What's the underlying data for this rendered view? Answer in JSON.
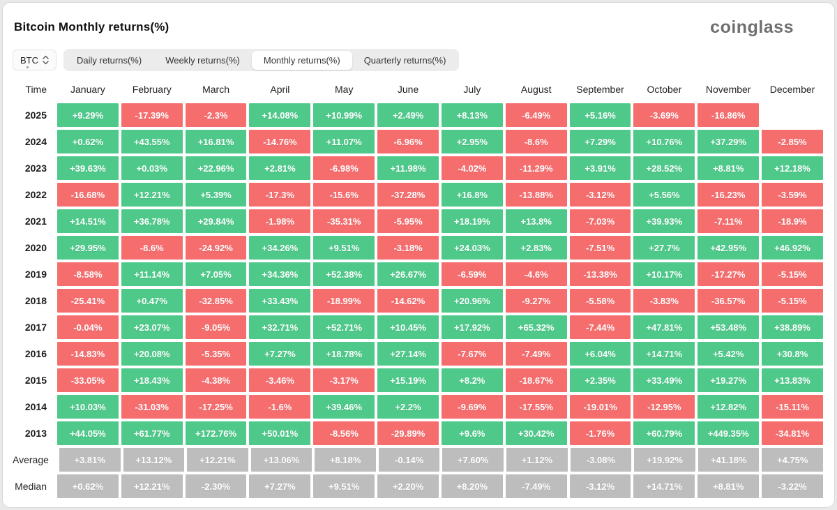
{
  "header": {
    "title": "Bitcoin Monthly returns(%)",
    "logo": "coinglass"
  },
  "controls": {
    "symbol": "BTC",
    "tabs": [
      {
        "label": "Daily returns(%)",
        "active": false
      },
      {
        "label": "Weekly returns(%)",
        "active": false
      },
      {
        "label": "Monthly returns(%)",
        "active": true
      },
      {
        "label": "Quarterly returns(%)",
        "active": false
      }
    ]
  },
  "chart_data": {
    "type": "heatmap",
    "title": "Bitcoin Monthly returns(%)",
    "legend_position": "none",
    "colors": {
      "positive": "#4ec98a",
      "negative": "#f66d6e",
      "summary": "#bdbdbd"
    },
    "columns": [
      "Time",
      "January",
      "February",
      "March",
      "April",
      "May",
      "June",
      "July",
      "August",
      "September",
      "October",
      "November",
      "December"
    ],
    "rows": [
      {
        "label": "2025",
        "summary": false,
        "values": [
          "+9.29%",
          "-17.39%",
          "-2.3%",
          "+14.08%",
          "+10.99%",
          "+2.49%",
          "+8.13%",
          "-6.49%",
          "+5.16%",
          "-3.69%",
          "-16.86%",
          ""
        ]
      },
      {
        "label": "2024",
        "summary": false,
        "values": [
          "+0.62%",
          "+43.55%",
          "+16.81%",
          "-14.76%",
          "+11.07%",
          "-6.96%",
          "+2.95%",
          "-8.6%",
          "+7.29%",
          "+10.76%",
          "+37.29%",
          "-2.85%"
        ]
      },
      {
        "label": "2023",
        "summary": false,
        "values": [
          "+39.63%",
          "+0.03%",
          "+22.96%",
          "+2.81%",
          "-6.98%",
          "+11.98%",
          "-4.02%",
          "-11.29%",
          "+3.91%",
          "+28.52%",
          "+8.81%",
          "+12.18%"
        ]
      },
      {
        "label": "2022",
        "summary": false,
        "values": [
          "-16.68%",
          "+12.21%",
          "+5.39%",
          "-17.3%",
          "-15.6%",
          "-37.28%",
          "+16.8%",
          "-13.88%",
          "-3.12%",
          "+5.56%",
          "-16.23%",
          "-3.59%"
        ]
      },
      {
        "label": "2021",
        "summary": false,
        "values": [
          "+14.51%",
          "+36.78%",
          "+29.84%",
          "-1.98%",
          "-35.31%",
          "-5.95%",
          "+18.19%",
          "+13.8%",
          "-7.03%",
          "+39.93%",
          "-7.11%",
          "-18.9%"
        ]
      },
      {
        "label": "2020",
        "summary": false,
        "values": [
          "+29.95%",
          "-8.6%",
          "-24.92%",
          "+34.26%",
          "+9.51%",
          "-3.18%",
          "+24.03%",
          "+2.83%",
          "-7.51%",
          "+27.7%",
          "+42.95%",
          "+46.92%"
        ]
      },
      {
        "label": "2019",
        "summary": false,
        "values": [
          "-8.58%",
          "+11.14%",
          "+7.05%",
          "+34.36%",
          "+52.38%",
          "+26.67%",
          "-6.59%",
          "-4.6%",
          "-13.38%",
          "+10.17%",
          "-17.27%",
          "-5.15%"
        ]
      },
      {
        "label": "2018",
        "summary": false,
        "values": [
          "-25.41%",
          "+0.47%",
          "-32.85%",
          "+33.43%",
          "-18.99%",
          "-14.62%",
          "+20.96%",
          "-9.27%",
          "-5.58%",
          "-3.83%",
          "-36.57%",
          "-5.15%"
        ]
      },
      {
        "label": "2017",
        "summary": false,
        "values": [
          "-0.04%",
          "+23.07%",
          "-9.05%",
          "+32.71%",
          "+52.71%",
          "+10.45%",
          "+17.92%",
          "+65.32%",
          "-7.44%",
          "+47.81%",
          "+53.48%",
          "+38.89%"
        ]
      },
      {
        "label": "2016",
        "summary": false,
        "values": [
          "-14.83%",
          "+20.08%",
          "-5.35%",
          "+7.27%",
          "+18.78%",
          "+27.14%",
          "-7.67%",
          "-7.49%",
          "+6.04%",
          "+14.71%",
          "+5.42%",
          "+30.8%"
        ]
      },
      {
        "label": "2015",
        "summary": false,
        "values": [
          "-33.05%",
          "+18.43%",
          "-4.38%",
          "-3.46%",
          "-3.17%",
          "+15.19%",
          "+8.2%",
          "-18.67%",
          "+2.35%",
          "+33.49%",
          "+19.27%",
          "+13.83%"
        ]
      },
      {
        "label": "2014",
        "summary": false,
        "values": [
          "+10.03%",
          "-31.03%",
          "-17.25%",
          "-1.6%",
          "+39.46%",
          "+2.2%",
          "-9.69%",
          "-17.55%",
          "-19.01%",
          "-12.95%",
          "+12.82%",
          "-15.11%"
        ]
      },
      {
        "label": "2013",
        "summary": false,
        "values": [
          "+44.05%",
          "+61.77%",
          "+172.76%",
          "+50.01%",
          "-8.56%",
          "-29.89%",
          "+9.6%",
          "+30.42%",
          "-1.76%",
          "+60.79%",
          "+449.35%",
          "-34.81%"
        ]
      },
      {
        "label": "Average",
        "summary": true,
        "values": [
          "+3.81%",
          "+13.12%",
          "+12.21%",
          "+13.06%",
          "+8.18%",
          "-0.14%",
          "+7.60%",
          "+1.12%",
          "-3.08%",
          "+19.92%",
          "+41.18%",
          "+4.75%"
        ]
      },
      {
        "label": "Median",
        "summary": true,
        "values": [
          "+0.62%",
          "+12.21%",
          "-2.30%",
          "+7.27%",
          "+9.51%",
          "+2.20%",
          "+8.20%",
          "-7.49%",
          "-3.12%",
          "+14.71%",
          "+8.81%",
          "-3.22%"
        ]
      }
    ]
  }
}
